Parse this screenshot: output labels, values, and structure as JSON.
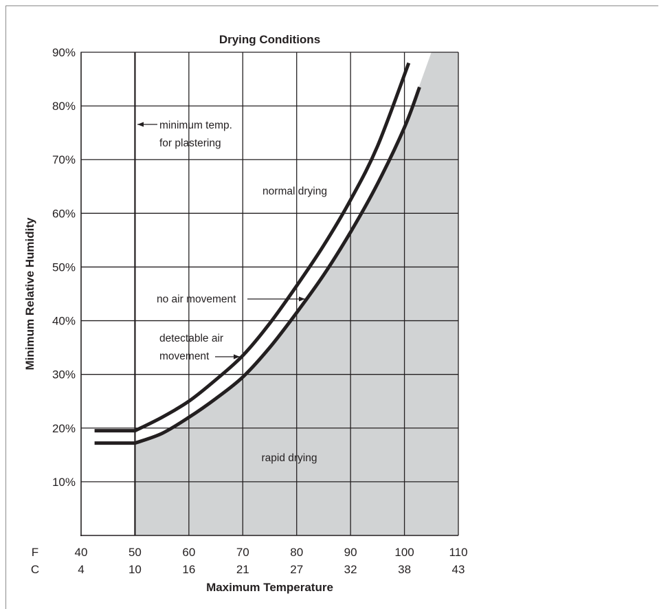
{
  "chart_data": {
    "type": "line",
    "title": "Drying Conditions",
    "xlabel": "Maximum Temperature",
    "ylabel": "Minimum Relative Humidity",
    "x_unit_labels": [
      "F",
      "C"
    ],
    "xlim": [
      40,
      110
    ],
    "ylim": [
      0,
      90
    ],
    "x_ticks_f": [
      "40",
      "50",
      "60",
      "70",
      "80",
      "90",
      "100",
      "110"
    ],
    "x_ticks_c": [
      "4",
      "10",
      "16",
      "21",
      "27",
      "32",
      "38",
      "43"
    ],
    "y_ticks": [
      "10%",
      "20%",
      "30%",
      "40%",
      "50%",
      "60%",
      "70%",
      "80%",
      "90%"
    ],
    "y_tick_values": [
      10,
      20,
      30,
      40,
      50,
      60,
      70,
      80,
      90
    ],
    "grid": true,
    "series": [
      {
        "key": "no_air_movement",
        "x": [
          42.5,
          50,
          55,
          60,
          65,
          70,
          75,
          80,
          85,
          90,
          95,
          100.8
        ],
        "y": [
          19.5,
          19.5,
          22,
          25,
          29,
          33.5,
          39.5,
          46.5,
          54,
          62.5,
          72.5,
          88
        ]
      },
      {
        "key": "detectable_air_movement",
        "x": [
          42.5,
          50,
          55,
          60,
          65,
          70,
          75,
          80,
          85,
          90,
          95,
          100,
          102.8
        ],
        "y": [
          17.2,
          17.2,
          19,
          22,
          25.5,
          29.5,
          35,
          41.5,
          48.5,
          56.5,
          65.5,
          76,
          83.5
        ]
      }
    ],
    "shaded_region": {
      "label_key": "rapid_drying",
      "boundary_x": [
        50,
        55,
        60,
        65,
        70,
        75,
        80,
        85,
        90,
        95,
        100,
        105
      ],
      "boundary_y": [
        17.2,
        19,
        22,
        25.5,
        29.5,
        35,
        41.5,
        48.5,
        56.5,
        65.5,
        76,
        90
      ]
    },
    "annotations": {
      "min_temp": [
        "minimum temp.",
        "for plastering"
      ],
      "normal_drying": "normal drying",
      "no_air_movement": "no air movement",
      "detectable_air": [
        "detectable air",
        "movement"
      ],
      "rapid_drying": "rapid drying"
    },
    "colors": {
      "shade": "#d1d3d4",
      "line": "#231f20",
      "grid": "#231f20"
    }
  }
}
